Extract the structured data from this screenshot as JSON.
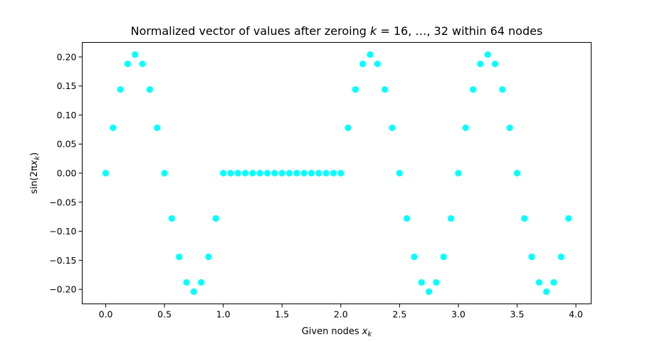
{
  "chart_data": {
    "type": "scatter",
    "title_prefix": "Normalized vector of values after zeroing ",
    "title_k": "k",
    "title_mid": " = 16, …, 32 within 64 nodes",
    "xlabel_prefix": "Given nodes ",
    "xlabel_var": "x",
    "xlabel_sub": "k",
    "ylabel_prefix": "sin(2π",
    "ylabel_var": "x",
    "ylabel_sub": "k",
    "ylabel_suffix": ")",
    "xlim": [
      -0.2,
      4.13
    ],
    "ylim": [
      -0.225,
      0.225
    ],
    "xticks": [
      0.0,
      0.5,
      1.0,
      1.5,
      2.0,
      2.5,
      3.0,
      3.5,
      4.0
    ],
    "xtick_labels": [
      "0.0",
      "0.5",
      "1.0",
      "1.5",
      "2.0",
      "2.5",
      "3.0",
      "3.5",
      "4.0"
    ],
    "yticks": [
      -0.2,
      -0.15,
      -0.1,
      -0.05,
      0.0,
      0.05,
      0.1,
      0.15,
      0.2
    ],
    "ytick_labels": [
      "−0.20",
      "−0.15",
      "−0.10",
      "−0.05",
      "0.00",
      "0.05",
      "0.10",
      "0.15",
      "0.20"
    ],
    "grid": false,
    "color": "#00ffff",
    "series": [
      {
        "x": [
          0.0,
          0.0625,
          0.125,
          0.1875,
          0.25,
          0.3125,
          0.375,
          0.4375,
          0.5,
          0.5625,
          0.625,
          0.6875,
          0.75,
          0.8125,
          0.875,
          0.9375,
          1.0,
          1.0625,
          1.125,
          1.1875,
          1.25,
          1.3125,
          1.375,
          1.4375,
          1.5,
          1.5625,
          1.625,
          1.6875,
          1.75,
          1.8125,
          1.875,
          1.9375,
          2.0,
          2.0625,
          2.125,
          2.1875,
          2.25,
          2.3125,
          2.375,
          2.4375,
          2.5,
          2.5625,
          2.625,
          2.6875,
          2.75,
          2.8125,
          2.875,
          2.9375,
          3.0,
          3.0625,
          3.125,
          3.1875,
          3.25,
          3.3125,
          3.375,
          3.4375,
          3.5,
          3.5625,
          3.625,
          3.6875,
          3.75,
          3.8125,
          3.875,
          3.9375
        ],
        "y": [
          0.0,
          0.078,
          0.144,
          0.188,
          0.204,
          0.188,
          0.144,
          0.078,
          0.0,
          -0.078,
          -0.144,
          -0.188,
          -0.204,
          -0.188,
          -0.144,
          -0.078,
          0.0,
          0.0,
          0.0,
          0.0,
          0.0,
          0.0,
          0.0,
          0.0,
          0.0,
          0.0,
          0.0,
          0.0,
          0.0,
          0.0,
          0.0,
          0.0,
          0.0,
          0.078,
          0.144,
          0.188,
          0.204,
          0.188,
          0.144,
          0.078,
          0.0,
          -0.078,
          -0.144,
          -0.188,
          -0.204,
          -0.188,
          -0.144,
          -0.078,
          0.0,
          0.078,
          0.144,
          0.188,
          0.204,
          0.188,
          0.144,
          0.078,
          0.0,
          -0.078,
          -0.144,
          -0.188,
          -0.204,
          -0.188,
          -0.144,
          -0.078
        ]
      }
    ]
  }
}
